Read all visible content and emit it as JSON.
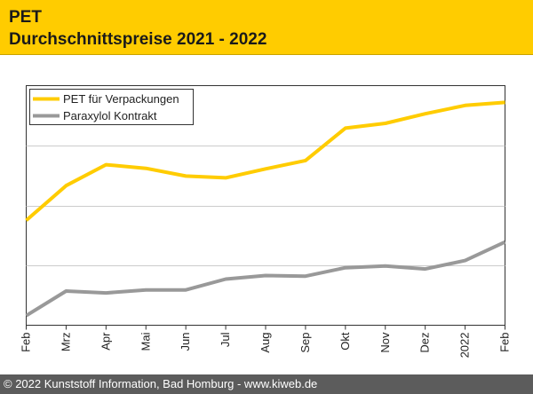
{
  "header": {
    "title": "PET",
    "subtitle": "Durchschnittspreise 2021 - 2022"
  },
  "footer": {
    "text": "© 2022 Kunststoff Information, Bad Homburg - www.kiweb.de"
  },
  "colors": {
    "header_bg": "#ffcc00",
    "pet": "#ffcc00",
    "paraxylol": "#999999",
    "footer_bg": "#5c5c5c"
  },
  "chart_data": {
    "type": "line",
    "categories": [
      "Feb",
      "Mrz",
      "Apr",
      "Mai",
      "Jun",
      "Jul",
      "Aug",
      "Sep",
      "Okt",
      "Nov",
      "Dez",
      "2022",
      "Feb"
    ],
    "ylim": [
      0,
      4
    ],
    "y_tick_labels_shown": false,
    "grid": "horizontal",
    "legend_position": "top-left",
    "series": [
      {
        "name": "PET für Verpackungen",
        "color": "#ffcc00",
        "values": [
          1.75,
          2.33,
          2.68,
          2.62,
          2.49,
          2.46,
          2.61,
          2.75,
          3.29,
          3.37,
          3.53,
          3.67,
          3.72
        ]
      },
      {
        "name": "Paraxylol Kontrakt",
        "color": "#999999",
        "values": [
          0.16,
          0.57,
          0.54,
          0.59,
          0.59,
          0.77,
          0.83,
          0.82,
          0.96,
          0.99,
          0.94,
          1.08,
          1.39
        ]
      }
    ]
  }
}
